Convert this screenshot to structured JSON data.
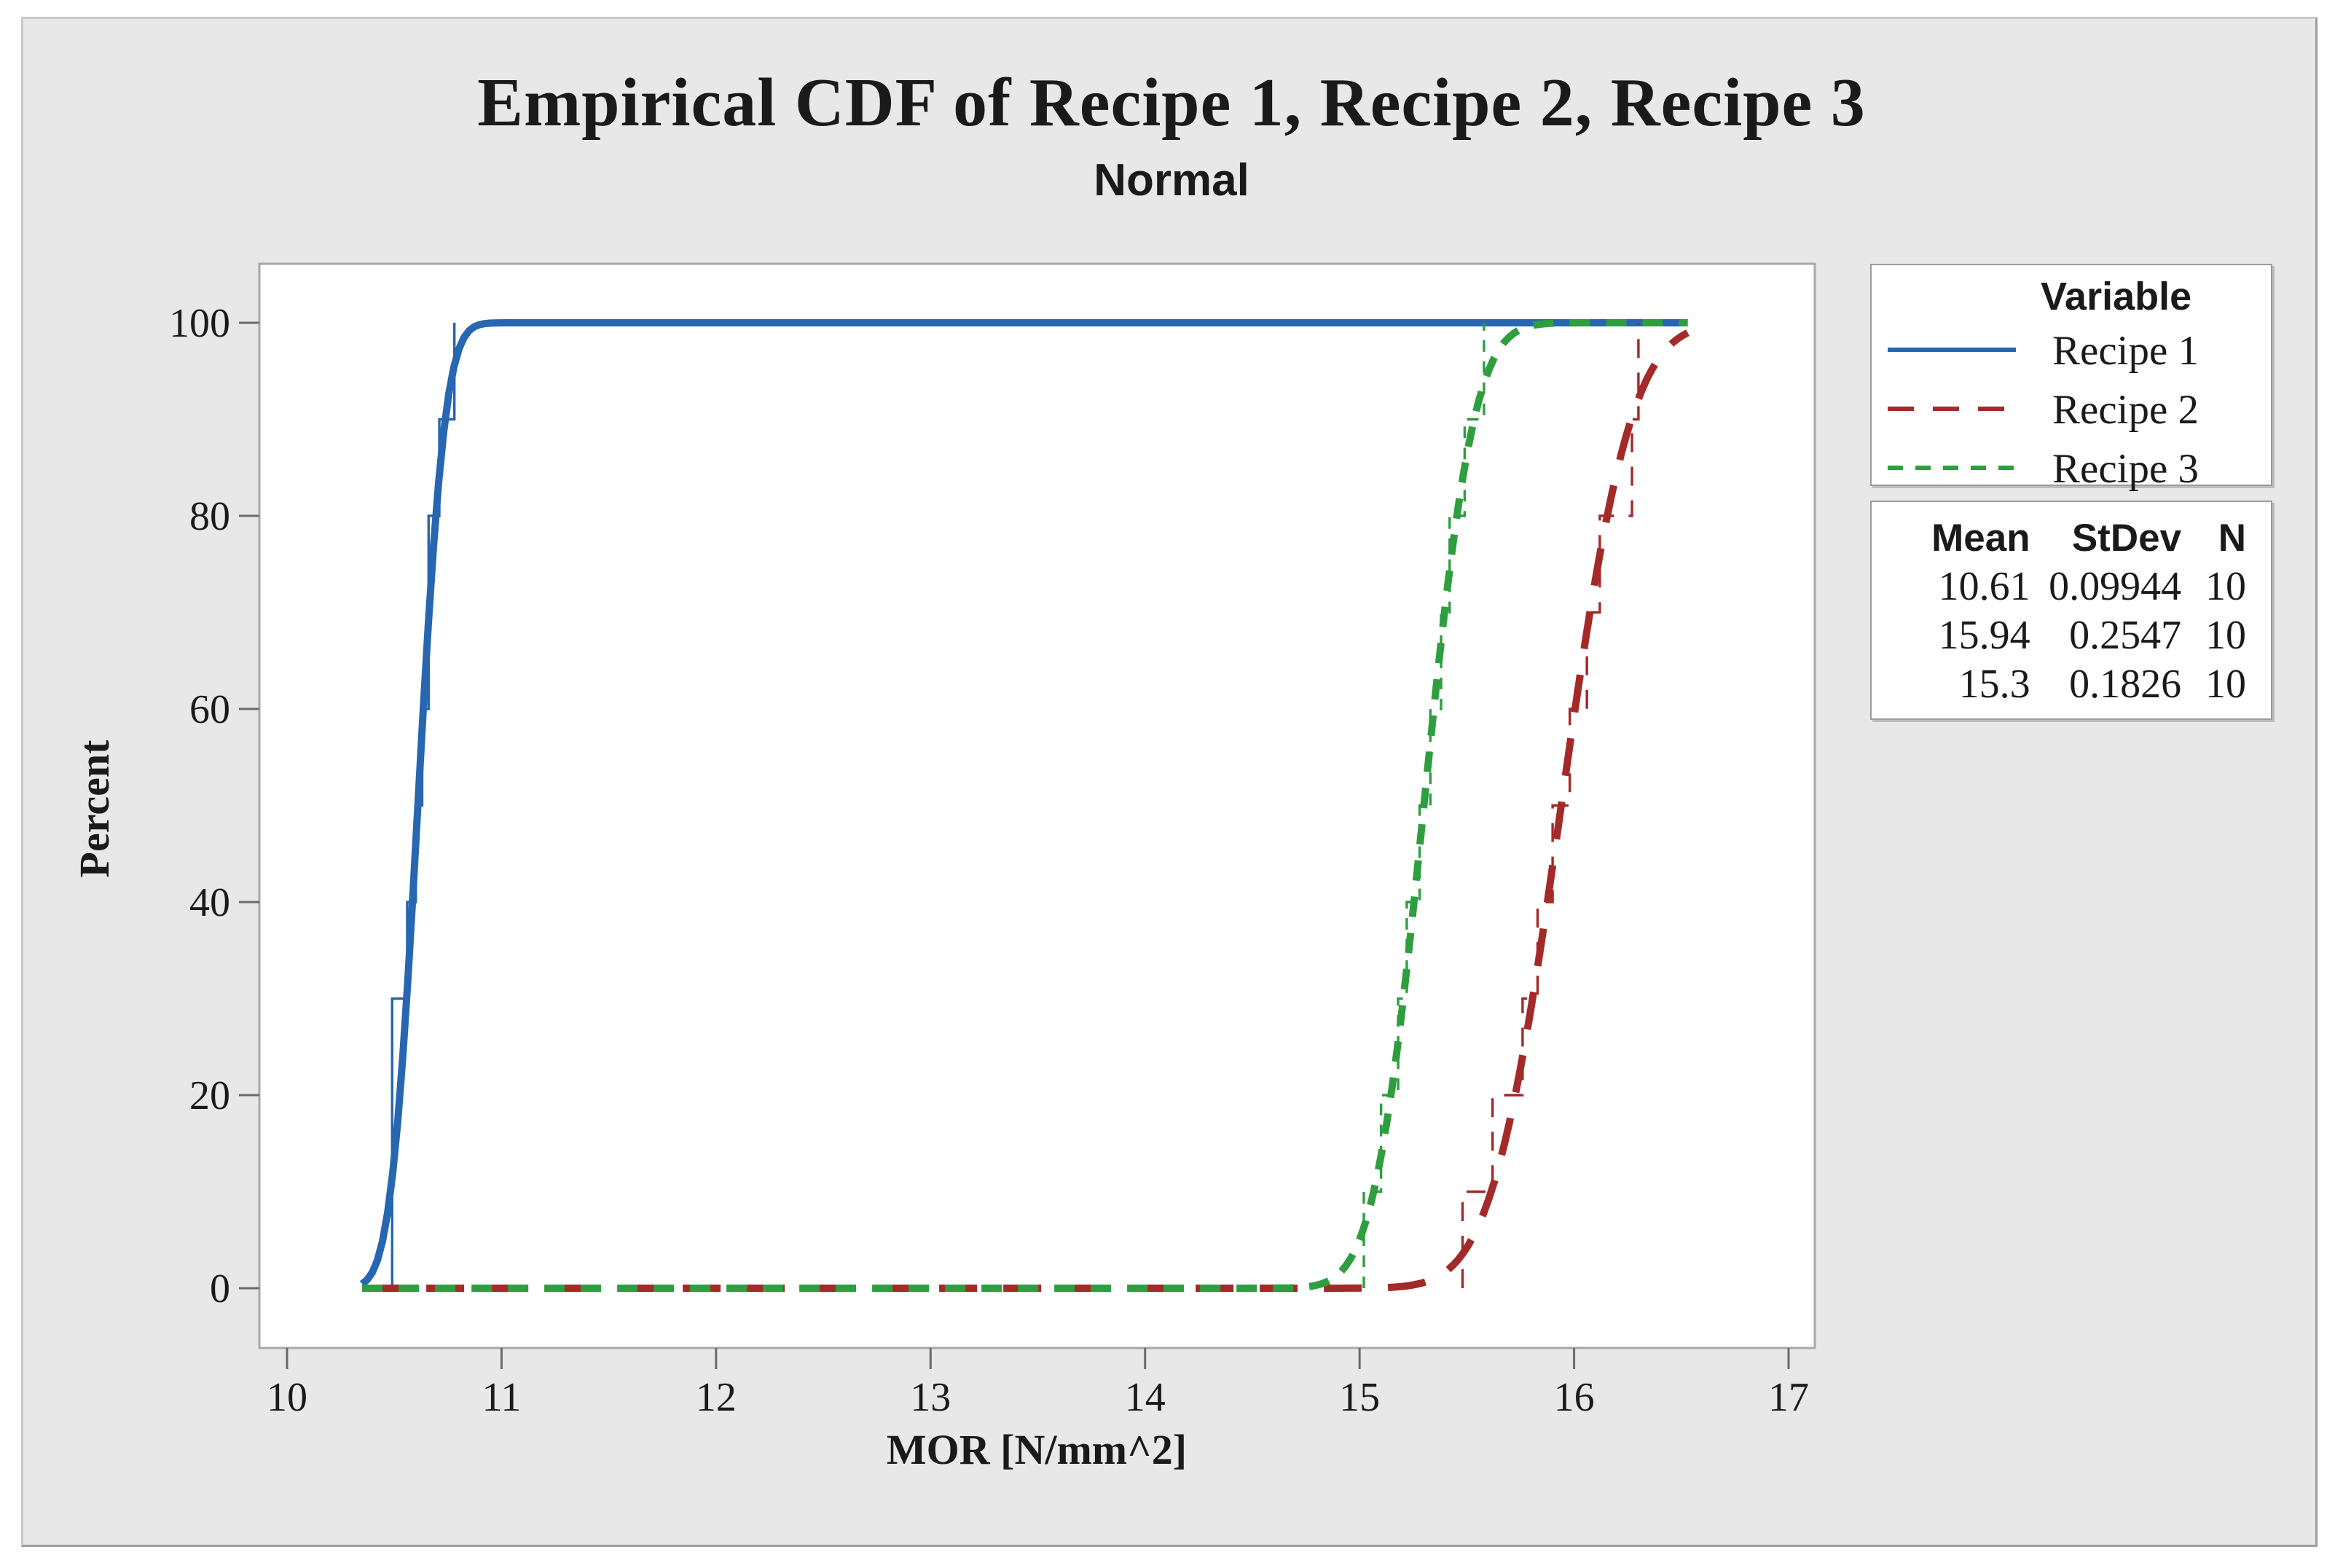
{
  "title": "Empirical CDF of Recipe 1, Recipe 2, Recipe 3",
  "subtitle": "Normal",
  "axes": {
    "x": {
      "label": "MOR [N/mm^2]",
      "ticks": [
        "10",
        "11",
        "12",
        "13",
        "14",
        "15",
        "16",
        "17"
      ]
    },
    "y": {
      "label": "Percent",
      "ticks": [
        "0",
        "20",
        "40",
        "60",
        "80",
        "100"
      ]
    }
  },
  "legend": {
    "header": "Variable",
    "items": [
      {
        "label": "Recipe 1",
        "color": "#2766b0",
        "style": "solid"
      },
      {
        "label": "Recipe 2",
        "color": "#a32a28",
        "style": "longdash"
      },
      {
        "label": "Recipe 3",
        "color": "#2e9e3f",
        "style": "shortdash"
      }
    ]
  },
  "stats_table": {
    "headers": [
      "Mean",
      "StDev",
      "N"
    ],
    "rows": [
      [
        "10.61",
        "0.09944",
        "10"
      ],
      [
        "15.94",
        "0.2547",
        "10"
      ],
      [
        "15.3",
        "0.1826",
        "10"
      ]
    ]
  },
  "chart_data": {
    "type": "line",
    "title": "Empirical CDF of Recipe 1, Recipe 2, Recipe 3",
    "subtitle": "Normal",
    "xlabel": "MOR [N/mm^2]",
    "ylabel": "Percent",
    "xlim": [
      9.87,
      17.12
    ],
    "ylim": [
      -6.2,
      106.2
    ],
    "x_ticks": [
      10,
      11,
      12,
      13,
      14,
      15,
      16,
      17
    ],
    "y_ticks": [
      0,
      20,
      40,
      60,
      80,
      100
    ],
    "grid": false,
    "legend_position": "right",
    "fit_distribution": "Normal",
    "curve_x_range": [
      10.35,
      16.53
    ],
    "series": [
      {
        "name": "Recipe 1",
        "color": "#2766b0",
        "style": "solid",
        "mean": 10.61,
        "stdev": 0.09944,
        "n": 10,
        "samples": [
          10.49,
          10.49,
          10.49,
          10.56,
          10.6,
          10.63,
          10.66,
          10.66,
          10.71,
          10.78
        ]
      },
      {
        "name": "Recipe 2",
        "color": "#a32a28",
        "style": "longdash",
        "mean": 15.94,
        "stdev": 0.2547,
        "n": 10,
        "samples": [
          15.48,
          15.62,
          15.76,
          15.83,
          15.9,
          15.98,
          16.06,
          16.12,
          16.27,
          16.3
        ]
      },
      {
        "name": "Recipe 3",
        "color": "#2e9e3f",
        "style": "shortdash",
        "mean": 15.3,
        "stdev": 0.1826,
        "n": 10,
        "samples": [
          15.02,
          15.1,
          15.18,
          15.22,
          15.28,
          15.33,
          15.38,
          15.42,
          15.49,
          15.58
        ]
      }
    ]
  }
}
